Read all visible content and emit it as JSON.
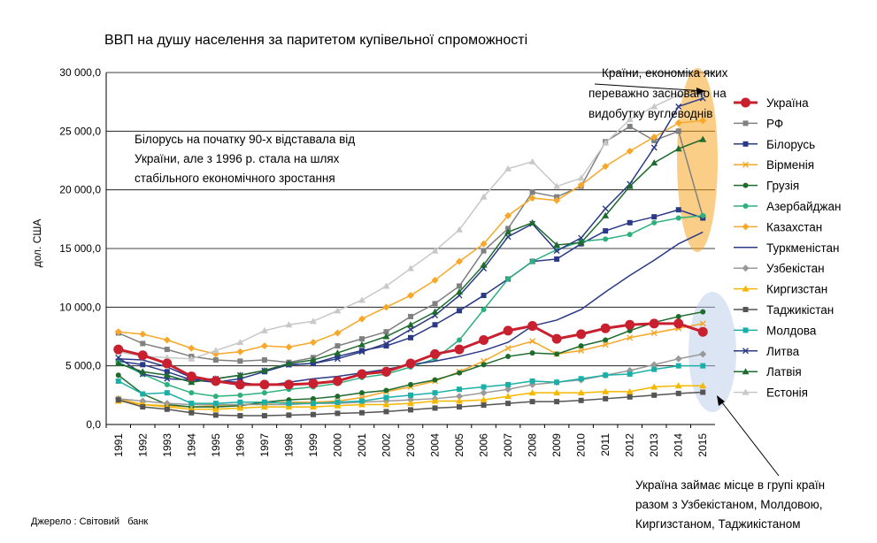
{
  "chart_data": {
    "type": "line",
    "title": "ВВП на душу населення за паритетом купівельної спроможності",
    "ylabel": "дол. США",
    "xlabel": "",
    "ylim": [
      0,
      30000
    ],
    "yticks": [
      "0,0",
      "5 000,0",
      "10 000,0",
      "15 000,0",
      "20 000,0",
      "25 000,0",
      "30 000,0"
    ],
    "x": [
      "1991",
      "1992",
      "1993",
      "1994",
      "1995",
      "1996",
      "1997",
      "1998",
      "1999",
      "2000",
      "2001",
      "2002",
      "2003",
      "2004",
      "2005",
      "2006",
      "2007",
      "2008",
      "2009",
      "2010",
      "2011",
      "2012",
      "2013",
      "2014",
      "2015"
    ],
    "grid": "horizontal",
    "legend_position": "right",
    "series": [
      {
        "name": "Україна",
        "color": "#c8202e",
        "marker": "circle",
        "values": [
          6400,
          5900,
          5200,
          4100,
          3700,
          3400,
          3400,
          3400,
          3500,
          3700,
          4300,
          4500,
          5200,
          6000,
          6400,
          7200,
          8000,
          8400,
          7300,
          7700,
          8200,
          8500,
          8600,
          8600,
          7900
        ]
      },
      {
        "name": "РФ",
        "color": "#808080",
        "marker": "square",
        "values": [
          7800,
          6900,
          6400,
          5800,
          5500,
          5400,
          5500,
          5300,
          5700,
          6700,
          7300,
          7900,
          9200,
          10300,
          11800,
          14800,
          16700,
          19800,
          19400,
          20300,
          24100,
          25400,
          24200,
          25000,
          17700
        ]
      },
      {
        "name": "Білорусь",
        "color": "#2b3a86",
        "marker": "square",
        "values": [
          5400,
          5100,
          4500,
          3800,
          3600,
          3900,
          4500,
          5100,
          5200,
          5800,
          6300,
          6700,
          7400,
          8500,
          9700,
          11000,
          12400,
          13900,
          14100,
          15400,
          16500,
          17200,
          17700,
          18300,
          17600
        ]
      },
      {
        "name": "Вірменія",
        "color": "#f5a623",
        "marker": "x",
        "values": [
          2200,
          1700,
          1600,
          1500,
          1600,
          1700,
          1800,
          1900,
          1900,
          2000,
          2300,
          2800,
          3200,
          3700,
          4500,
          5400,
          6500,
          7100,
          6000,
          6300,
          6800,
          7400,
          7800,
          8200,
          8600
        ]
      },
      {
        "name": "Грузія",
        "color": "#1e6b2e",
        "marker": "circle",
        "values": [
          4200,
          2600,
          1700,
          1500,
          1500,
          1600,
          1900,
          2100,
          2200,
          2400,
          2700,
          2900,
          3400,
          3800,
          4400,
          5100,
          5800,
          6100,
          6000,
          6700,
          7200,
          8000,
          8700,
          9200,
          9600
        ]
      },
      {
        "name": "Азербайджан",
        "color": "#2eb07e",
        "marker": "circle",
        "values": [
          5300,
          4300,
          3400,
          2700,
          2400,
          2500,
          2700,
          3000,
          3200,
          3500,
          4000,
          4300,
          4900,
          5600,
          7200,
          9800,
          12400,
          13900,
          14900,
          15600,
          15800,
          16200,
          17200,
          17600,
          17800
        ]
      },
      {
        "name": "Казахстан",
        "color": "#f7a82a",
        "marker": "diamond",
        "values": [
          7900,
          7700,
          7200,
          6500,
          6000,
          6200,
          6700,
          6600,
          7000,
          7800,
          9000,
          10000,
          11000,
          12300,
          13900,
          15400,
          17800,
          19300,
          19100,
          20400,
          22000,
          23300,
          24500,
          25700,
          25900
        ]
      },
      {
        "name": "Туркменістан",
        "color": "#2b3a86",
        "marker": "none",
        "values": [
          5600,
          5500,
          4900,
          4000,
          3700,
          3600,
          3300,
          3600,
          3900,
          4100,
          4400,
          4700,
          5100,
          5400,
          5800,
          6300,
          7000,
          8400,
          8900,
          9800,
          11300,
          12700,
          14000,
          15400,
          16400
        ]
      },
      {
        "name": "Узбекістан",
        "color": "#999999",
        "marker": "diamond",
        "values": [
          2200,
          2000,
          1800,
          1700,
          1700,
          1700,
          1700,
          1700,
          1800,
          1800,
          1900,
          2000,
          2100,
          2200,
          2400,
          2700,
          3000,
          3400,
          3600,
          3800,
          4200,
          4600,
          5100,
          5600,
          6000
        ]
      },
      {
        "name": "Киргизстан",
        "color": "#f5b700",
        "marker": "triangle",
        "values": [
          2000,
          1700,
          1500,
          1300,
          1300,
          1400,
          1500,
          1500,
          1500,
          1600,
          1700,
          1700,
          1800,
          2000,
          2000,
          2100,
          2400,
          2700,
          2700,
          2700,
          2800,
          2800,
          3200,
          3300,
          3300
        ]
      },
      {
        "name": "Таджикістан",
        "color": "#555555",
        "marker": "square",
        "values": [
          2100,
          1500,
          1300,
          1000,
          800,
          750,
          750,
          800,
          850,
          950,
          1000,
          1100,
          1250,
          1400,
          1500,
          1650,
          1800,
          1950,
          1950,
          2050,
          2200,
          2350,
          2500,
          2650,
          2750
        ]
      },
      {
        "name": "Молдова",
        "color": "#1ab0a8",
        "marker": "square",
        "values": [
          3700,
          2600,
          2700,
          1800,
          1800,
          1900,
          1900,
          1800,
          1800,
          1900,
          2000,
          2300,
          2500,
          2700,
          3000,
          3200,
          3400,
          3700,
          3600,
          3900,
          4200,
          4300,
          4700,
          5000,
          5000
        ]
      },
      {
        "name": "Литва",
        "color": "#2b3a86",
        "marker": "x",
        "values": [
          5700,
          4300,
          3900,
          3800,
          3900,
          4200,
          4600,
          5100,
          5200,
          5600,
          6200,
          6900,
          8100,
          9300,
          11000,
          13300,
          16000,
          17100,
          14800,
          15900,
          18400,
          20500,
          23600,
          27100,
          27800
        ]
      },
      {
        "name": "Латвія",
        "color": "#1e6b2e",
        "marker": "triangle",
        "values": [
          5200,
          4500,
          4200,
          3600,
          3900,
          4200,
          4600,
          5200,
          5500,
          6100,
          6800,
          7500,
          8500,
          9600,
          11300,
          13600,
          16400,
          17200,
          15300,
          15500,
          17800,
          20300,
          22300,
          23500,
          24300
        ]
      },
      {
        "name": "Естонія",
        "color": "#c8c8c8",
        "marker": "triangle",
        "values": [
          6200,
          5800,
          5700,
          5600,
          6300,
          7000,
          8000,
          8500,
          8800,
          9700,
          10600,
          11800,
          13300,
          14800,
          16600,
          19400,
          21800,
          22400,
          20300,
          21000,
          24000,
          26000,
          27100,
          28100,
          28100
        ]
      }
    ],
    "annotations": {
      "top_right": [
        "Країни, економіка яких",
        "переважно засновано на",
        "видобутку вуглеводнів"
      ],
      "left": [
        "Білорусь на початку 90-х відставала від",
        "України, але з 1996 р. стала на шлях",
        "стабільного економічного зростання"
      ],
      "bottom_right": [
        "Україна займає місце в групі країн",
        "разом з Узбекістаном, Молдовою,",
        "Киргизстаном, Таджикістаном"
      ]
    },
    "source": "Джерело : Світовий   банк"
  }
}
